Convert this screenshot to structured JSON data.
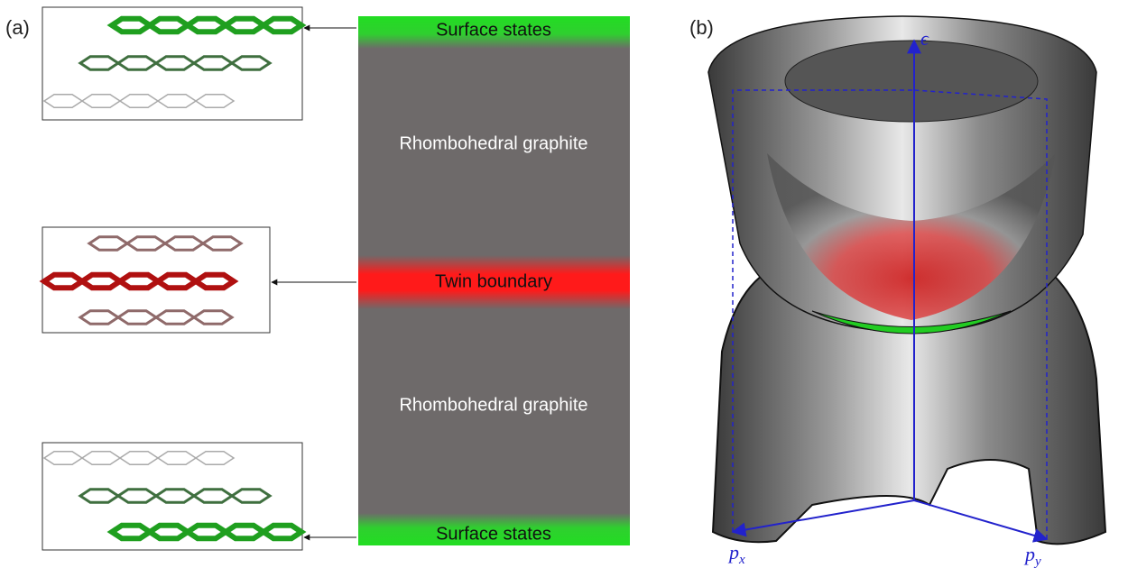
{
  "panel_a": {
    "label": "(a)",
    "regions": [
      "Surface states",
      "Rhombohedral graphite",
      "Twin boundary",
      "Rhombohedral graphite",
      "Surface states"
    ]
  },
  "panel_b": {
    "label": "(b)",
    "axes": {
      "energy": "ϵ",
      "px": {
        "symbol": "p",
        "subscript": "x"
      },
      "py": {
        "symbol": "p",
        "subscript": "y"
      }
    }
  }
}
